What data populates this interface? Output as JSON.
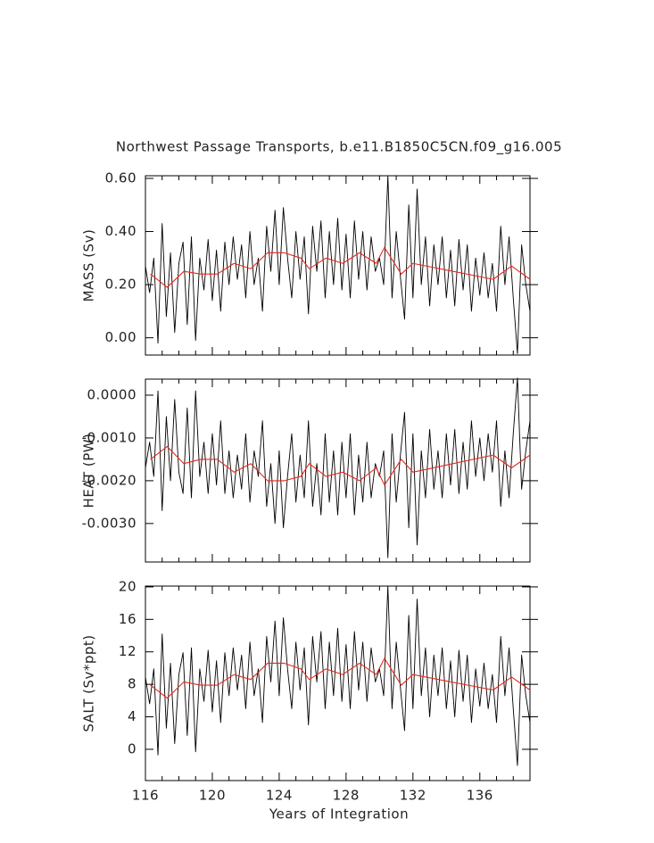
{
  "chart_data": [
    {
      "type": "line",
      "title": "Northwest Passage Transports, b.e11.B1850C5CN.f09_g16.005",
      "ylabel": "MASS (Sv)",
      "ylim": [
        -0.065,
        0.61
      ],
      "yticks": [
        {
          "value": 0.6,
          "label": "0.60"
        },
        {
          "value": 0.4,
          "label": "0.40"
        },
        {
          "value": 0.2,
          "label": "0.20"
        },
        {
          "value": 0,
          "label": "0.00"
        }
      ],
      "series": [
        {
          "color": "#000000",
          "x": [
            116,
            116.25,
            116.5,
            116.75,
            117,
            117.25,
            117.5,
            117.75,
            118,
            118.25,
            118.5,
            118.75,
            119,
            119.25,
            119.5,
            119.75,
            120,
            120.25,
            120.5,
            120.75,
            121,
            121.25,
            121.5,
            121.75,
            122,
            122.25,
            122.5,
            122.75,
            123,
            123.25,
            123.5,
            123.75,
            124,
            124.25,
            124.5,
            124.75,
            125,
            125.25,
            125.5,
            125.75,
            126,
            126.25,
            126.5,
            126.75,
            127,
            127.25,
            127.5,
            127.75,
            128,
            128.25,
            128.5,
            128.75,
            129,
            129.25,
            129.5,
            129.75,
            130,
            130.25,
            130.5,
            130.75,
            131,
            131.25,
            131.5,
            131.75,
            132,
            132.25,
            132.5,
            132.75,
            133,
            133.25,
            133.5,
            133.75,
            134,
            134.25,
            134.5,
            134.75,
            135,
            135.25,
            135.5,
            135.75,
            136,
            136.25,
            136.5,
            136.75,
            137,
            137.25,
            137.5,
            137.75,
            138,
            138.25,
            138.5,
            138.75,
            139
          ],
          "values": [
            0.27,
            0.17,
            0.3,
            -0.02,
            0.43,
            0.08,
            0.32,
            0.02,
            0.28,
            0.36,
            0.05,
            0.38,
            -0.01,
            0.3,
            0.18,
            0.37,
            0.14,
            0.33,
            0.1,
            0.36,
            0.2,
            0.38,
            0.22,
            0.35,
            0.15,
            0.4,
            0.2,
            0.3,
            0.1,
            0.42,
            0.25,
            0.48,
            0.2,
            0.49,
            0.3,
            0.15,
            0.4,
            0.22,
            0.38,
            0.09,
            0.42,
            0.25,
            0.44,
            0.15,
            0.4,
            0.2,
            0.45,
            0.18,
            0.39,
            0.15,
            0.44,
            0.22,
            0.4,
            0.18,
            0.38,
            0.25,
            0.3,
            0.2,
            0.61,
            0.15,
            0.4,
            0.23,
            0.07,
            0.5,
            0.15,
            0.56,
            0.2,
            0.38,
            0.12,
            0.35,
            0.2,
            0.38,
            0.15,
            0.33,
            0.12,
            0.37,
            0.18,
            0.35,
            0.1,
            0.3,
            0.16,
            0.32,
            0.15,
            0.28,
            0.1,
            0.42,
            0.2,
            0.38,
            0.15,
            -0.06,
            0.35,
            0.2,
            0.1
          ]
        },
        {
          "color": "#e8281e",
          "x": [
            116.3,
            117.3,
            118.3,
            119.3,
            120.3,
            121.3,
            122.3,
            123.3,
            124.3,
            125.3,
            125.8,
            126.8,
            127.8,
            128.8,
            129.8,
            130.3,
            131.3,
            132.0,
            136.8,
            137.9,
            139.0
          ],
          "values": [
            0.24,
            0.19,
            0.25,
            0.24,
            0.24,
            0.28,
            0.26,
            0.32,
            0.32,
            0.3,
            0.26,
            0.3,
            0.28,
            0.32,
            0.28,
            0.34,
            0.24,
            0.28,
            0.22,
            0.27,
            0.22
          ]
        }
      ]
    },
    {
      "type": "line",
      "ylabel": "HEAT (PW)",
      "ylim": [
        -0.0039,
        0.000375
      ],
      "yticks": [
        {
          "value": 0,
          "label": "0.0000"
        },
        {
          "value": -0.001,
          "label": "-0.0010"
        },
        {
          "value": -0.002,
          "label": "-0.0020"
        },
        {
          "value": -0.003,
          "label": "-0.0030"
        }
      ],
      "series": [
        {
          "color": "#000000",
          "values": [
            -0.0017,
            -0.0011,
            -0.0019,
            0.0001,
            -0.0027,
            -0.0005,
            -0.002,
            -0.0001,
            -0.0018,
            -0.0023,
            -0.0003,
            -0.0024,
            0.0001,
            -0.0019,
            -0.0011,
            -0.0023,
            -0.0009,
            -0.0021,
            -0.0006,
            -0.0023,
            -0.0013,
            -0.0024,
            -0.0014,
            -0.0022,
            -0.0009,
            -0.0025,
            -0.0013,
            -0.0019,
            -0.0006,
            -0.0026,
            -0.0016,
            -0.003,
            -0.0013,
            -0.0031,
            -0.0019,
            -0.0009,
            -0.0025,
            -0.0014,
            -0.0024,
            -0.0006,
            -0.0026,
            -0.0016,
            -0.0028,
            -0.0009,
            -0.0025,
            -0.0013,
            -0.0028,
            -0.0011,
            -0.0024,
            -0.0009,
            -0.0028,
            -0.0014,
            -0.0025,
            -0.0011,
            -0.0024,
            -0.0016,
            -0.0019,
            -0.0013,
            -0.0038,
            -0.0009,
            -0.0025,
            -0.0014,
            -0.0004,
            -0.0031,
            -0.0009,
            -0.0035,
            -0.0013,
            -0.0024,
            -0.0008,
            -0.0022,
            -0.0013,
            -0.0024,
            -0.0009,
            -0.0021,
            -0.0008,
            -0.0023,
            -0.0011,
            -0.0022,
            -0.0006,
            -0.0019,
            -0.001,
            -0.002,
            -0.0009,
            -0.0018,
            -0.0006,
            -0.0026,
            -0.0013,
            -0.0024,
            -0.0009,
            0.0004,
            -0.0022,
            -0.0013,
            -0.0006
          ]
        },
        {
          "color": "#e8281e",
          "values": [
            -0.0015,
            -0.0012,
            -0.0016,
            -0.0015,
            -0.0015,
            -0.0018,
            -0.0016,
            -0.002,
            -0.002,
            -0.0019,
            -0.0016,
            -0.0019,
            -0.0018,
            -0.002,
            -0.0017,
            -0.0021,
            -0.0015,
            -0.0018,
            -0.0014,
            -0.0017,
            -0.0014
          ]
        }
      ]
    },
    {
      "type": "line",
      "ylabel": "SALT (Sv*ppt)",
      "xlabel": "Years of Integration",
      "ylim": [
        -3.85,
        20.1
      ],
      "yticks": [
        20,
        16,
        12,
        8,
        4,
        0
      ],
      "xlim": [
        116,
        139
      ],
      "xticks": [
        116,
        120,
        124,
        128,
        132,
        136
      ],
      "xminorticks": [
        117,
        118,
        119,
        121,
        122,
        123,
        125,
        126,
        127,
        129,
        130,
        131,
        133,
        134,
        135,
        137,
        138
      ],
      "series": [
        {
          "color": "#000000",
          "values": [
            8.9,
            5.6,
            9.9,
            -0.7,
            14.2,
            2.6,
            10.6,
            0.7,
            9.2,
            11.9,
            1.7,
            12.5,
            -0.3,
            9.9,
            5.9,
            12.2,
            4.6,
            10.9,
            3.3,
            11.9,
            6.6,
            12.5,
            7.3,
            11.6,
            5.0,
            13.2,
            6.6,
            9.9,
            3.3,
            13.9,
            8.3,
            15.8,
            6.6,
            16.2,
            9.9,
            5.0,
            13.2,
            7.3,
            12.5,
            3.0,
            13.9,
            8.3,
            14.5,
            5.0,
            13.2,
            6.6,
            14.9,
            5.9,
            12.9,
            5.0,
            14.5,
            7.3,
            13.2,
            5.9,
            12.5,
            8.3,
            9.9,
            6.6,
            20.1,
            5.0,
            13.2,
            7.6,
            2.3,
            16.5,
            5.0,
            18.5,
            6.6,
            12.5,
            4.0,
            11.6,
            6.6,
            12.5,
            5.0,
            10.9,
            4.0,
            12.2,
            5.9,
            11.6,
            3.3,
            9.9,
            5.3,
            10.6,
            5.0,
            9.2,
            3.3,
            13.9,
            6.6,
            12.5,
            5.0,
            -2.0,
            11.6,
            6.6,
            3.3
          ]
        },
        {
          "color": "#e8281e",
          "values": [
            7.9,
            6.3,
            8.3,
            7.9,
            7.9,
            9.2,
            8.6,
            10.6,
            10.6,
            9.9,
            8.6,
            9.9,
            9.2,
            10.6,
            9.2,
            11.2,
            7.9,
            9.2,
            7.3,
            8.9,
            7.3
          ]
        }
      ]
    }
  ]
}
